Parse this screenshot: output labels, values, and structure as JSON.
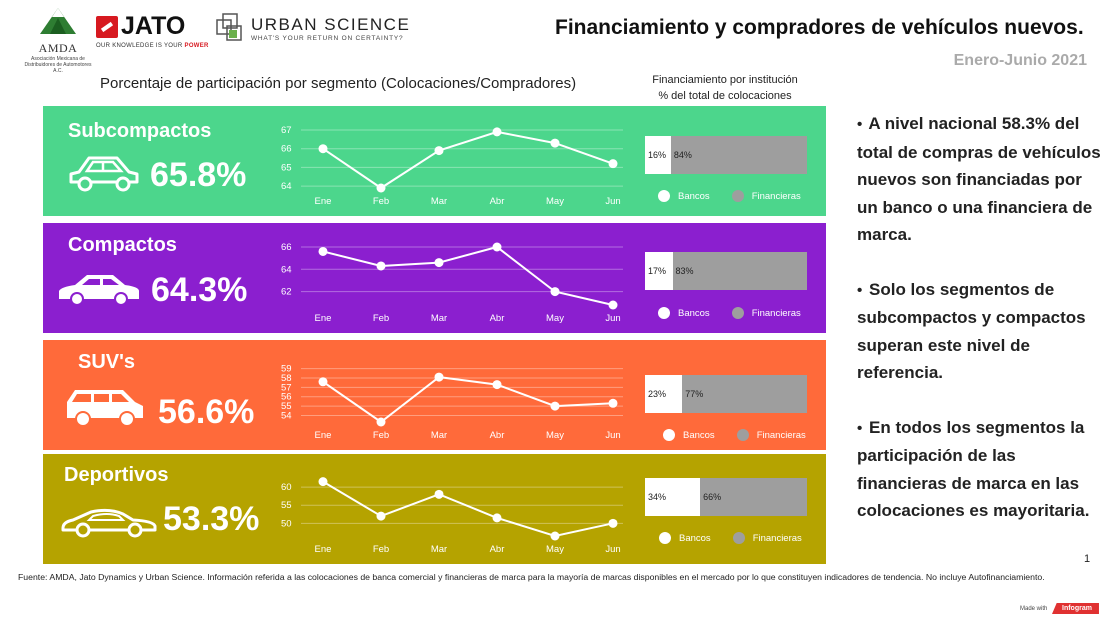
{
  "header": {
    "title": "Financiamiento y compradores de vehículos nuevos.",
    "period": "Enero-Junio  2021",
    "logo_amda": "AMDA",
    "logo_amda_sub": "Asociación Mexicana de Distribuidores de Automotores A.C.",
    "logo_jato": "JATO",
    "logo_jato_tag_a": "OUR KNOWLEDGE IS YOUR ",
    "logo_jato_tag_b": "POWER",
    "logo_us": "URBAN SCIENCE",
    "logo_us_tag": "WHAT'S YOUR RETURN ON CERTAINTY?"
  },
  "section_heading": "Porcentaje de participación por segmento (Colocaciones/Compradores)",
  "fin_heading_1": "Financiamiento por institución",
  "fin_heading_2": "% del total de colocaciones",
  "colors": {
    "subcompactos": "#4cd68c",
    "compactos": "#8b1fcf",
    "suvs": "#ff6a3a",
    "deportivos": "#b5a300"
  },
  "legend": {
    "bancos": "Bancos",
    "financieras": "Financieras"
  },
  "chart_data": [
    {
      "type": "line",
      "segment": "Subcompactos",
      "share": "65.8%",
      "categories": [
        "Ene",
        "Feb",
        "Mar",
        "Abr",
        "May",
        "Jun"
      ],
      "values": [
        66.0,
        63.9,
        65.9,
        66.9,
        66.3,
        65.2
      ],
      "yticks": [
        "67",
        "66",
        "65",
        "64"
      ],
      "ylim": [
        63.9,
        67.0
      ],
      "financing": {
        "bancos": 16,
        "financieras": 84,
        "bancos_label": "16%",
        "financieras_label": "84%"
      }
    },
    {
      "type": "line",
      "segment": "Compactos",
      "share": "64.3%",
      "categories": [
        "Ene",
        "Feb",
        "Mar",
        "Abr",
        "May",
        "Jun"
      ],
      "values": [
        65.6,
        64.3,
        64.6,
        66.0,
        62.0,
        60.8
      ],
      "yticks": [
        "66",
        "64",
        "62"
      ],
      "ylim": [
        60.8,
        66.0
      ],
      "financing": {
        "bancos": 17,
        "financieras": 83,
        "bancos_label": "17%",
        "financieras_label": "83%"
      }
    },
    {
      "type": "line",
      "segment": "SUV's",
      "share": "56.6%",
      "categories": [
        "Ene",
        "Feb",
        "Mar",
        "Abr",
        "May",
        "Jun"
      ],
      "values": [
        57.6,
        53.3,
        58.1,
        57.3,
        55.0,
        55.3
      ],
      "yticks": [
        "59",
        "58",
        "57",
        "56",
        "55",
        "54"
      ],
      "ylim": [
        53.3,
        59.5
      ],
      "financing": {
        "bancos": 23,
        "financieras": 77,
        "bancos_label": "23%",
        "financieras_label": "77%"
      }
    },
    {
      "type": "line",
      "segment": "Deportivos",
      "share": "53.3%",
      "categories": [
        "Ene",
        "Feb",
        "Mar",
        "Abr",
        "May",
        "Jun"
      ],
      "values": [
        61.5,
        52.0,
        58.0,
        51.5,
        46.5,
        50.0
      ],
      "yticks": [
        "60",
        "55",
        "50"
      ],
      "ylim": [
        46.5,
        62.5
      ],
      "financing": {
        "bancos": 34,
        "financieras": 66,
        "bancos_label": "34%",
        "financieras_label": "66%"
      }
    }
  ],
  "notes": [
    "A nivel nacional 58.3% del total de compras de vehículos nuevos son financiadas por un banco o una financiera de marca.",
    "Solo los segmentos de subcompactos y compactos superan este nivel de referencia.",
    "En todos los segmentos la participación de las financieras de marca en las colocaciones es mayoritaria."
  ],
  "bullet": "•",
  "footer": "Fuente: AMDA, Jato Dynamics y Urban Science. Información referida a las colocaciones de banca comercial y financieras de marca para la mayoría de marcas disponibles en el mercado por lo que constituyen indicadores de tendencia. No incluye Autofinanciamiento.",
  "page_number": "1",
  "made_with": "Made with",
  "brand": "Infogram"
}
